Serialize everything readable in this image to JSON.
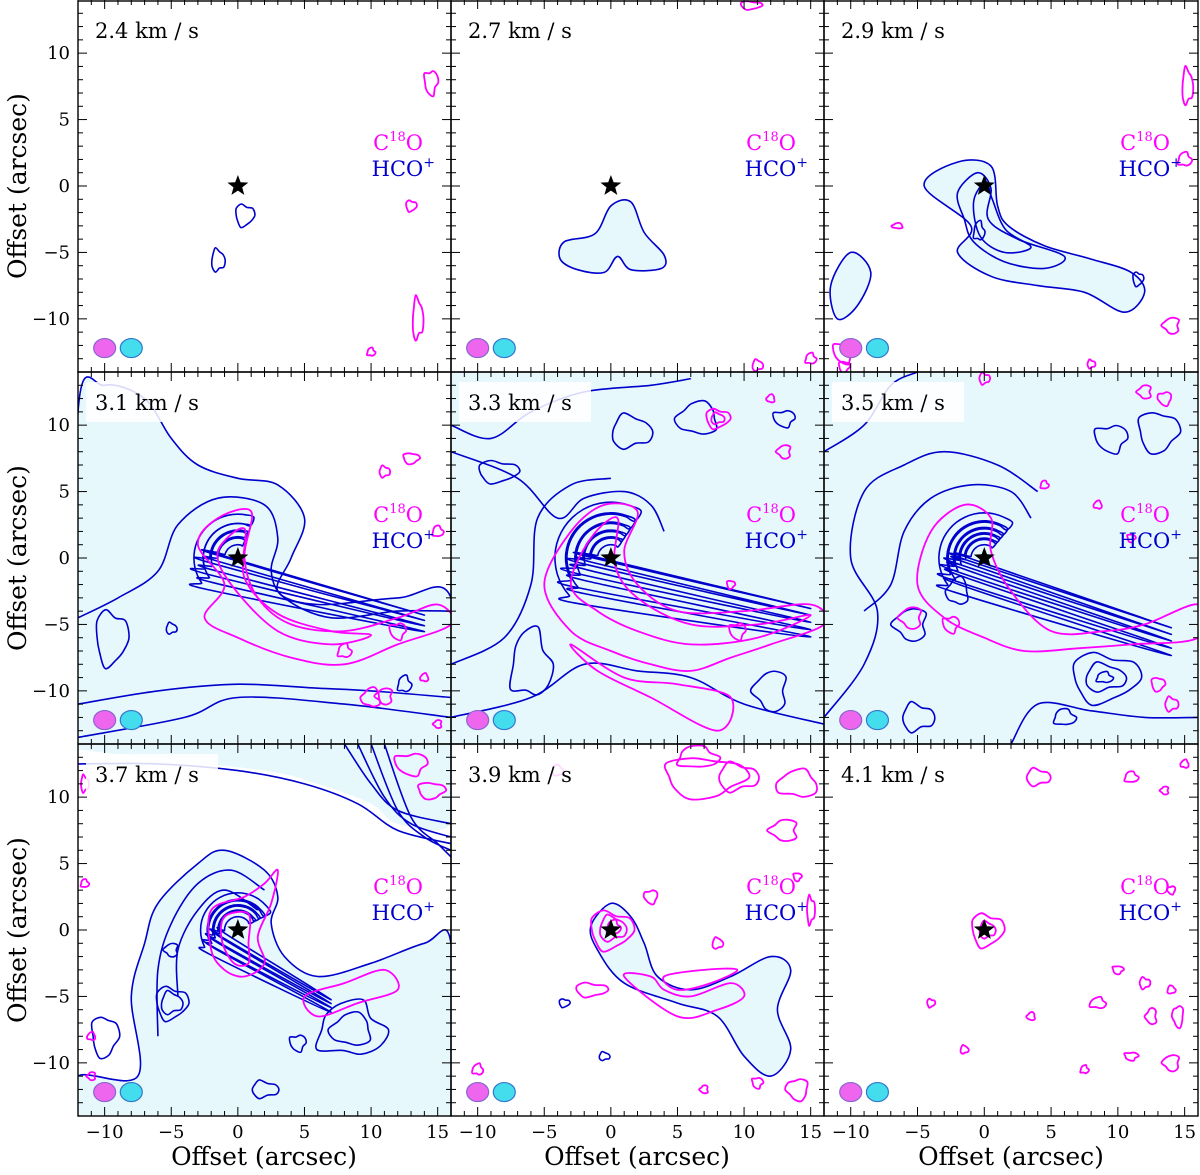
{
  "figure": {
    "xlabel": "Offset (arcsec)",
    "ylabel": "Offset (arcsec)",
    "legend": {
      "line1_base": "C",
      "line1_sup": "18",
      "line1_tail": "O",
      "line2_base": "HCO",
      "line2_sup": "+"
    },
    "colors": {
      "c18o": "#ff00ff",
      "hco": "#0000cc",
      "fill": "#e6f8fc",
      "beam_c18o": "#ee66ee",
      "beam_hco": "#44ddee",
      "frame": "#000000"
    }
  },
  "chart_data": {
    "type": "contour",
    "xlim": [
      -12,
      16
    ],
    "ylim": [
      -14,
      14
    ],
    "xticks": [
      -10,
      -5,
      0,
      5,
      10,
      15
    ],
    "yticks": [
      -10,
      -5,
      0,
      5,
      10
    ],
    "star": {
      "x": 0,
      "y": 0
    },
    "series": [
      {
        "name": "C18O",
        "color": "#ff00ff"
      },
      {
        "name": "HCO+",
        "color": "#0000cc"
      }
    ],
    "panels": [
      {
        "label": "2.4 km / s"
      },
      {
        "label": "2.7 km / s"
      },
      {
        "label": "2.9 km / s"
      },
      {
        "label": "3.1 km / s"
      },
      {
        "label": "3.3 km / s"
      },
      {
        "label": "3.5 km / s"
      },
      {
        "label": "3.7 km / s"
      },
      {
        "label": "3.9 km / s"
      },
      {
        "label": "4.1 km / s"
      }
    ]
  }
}
